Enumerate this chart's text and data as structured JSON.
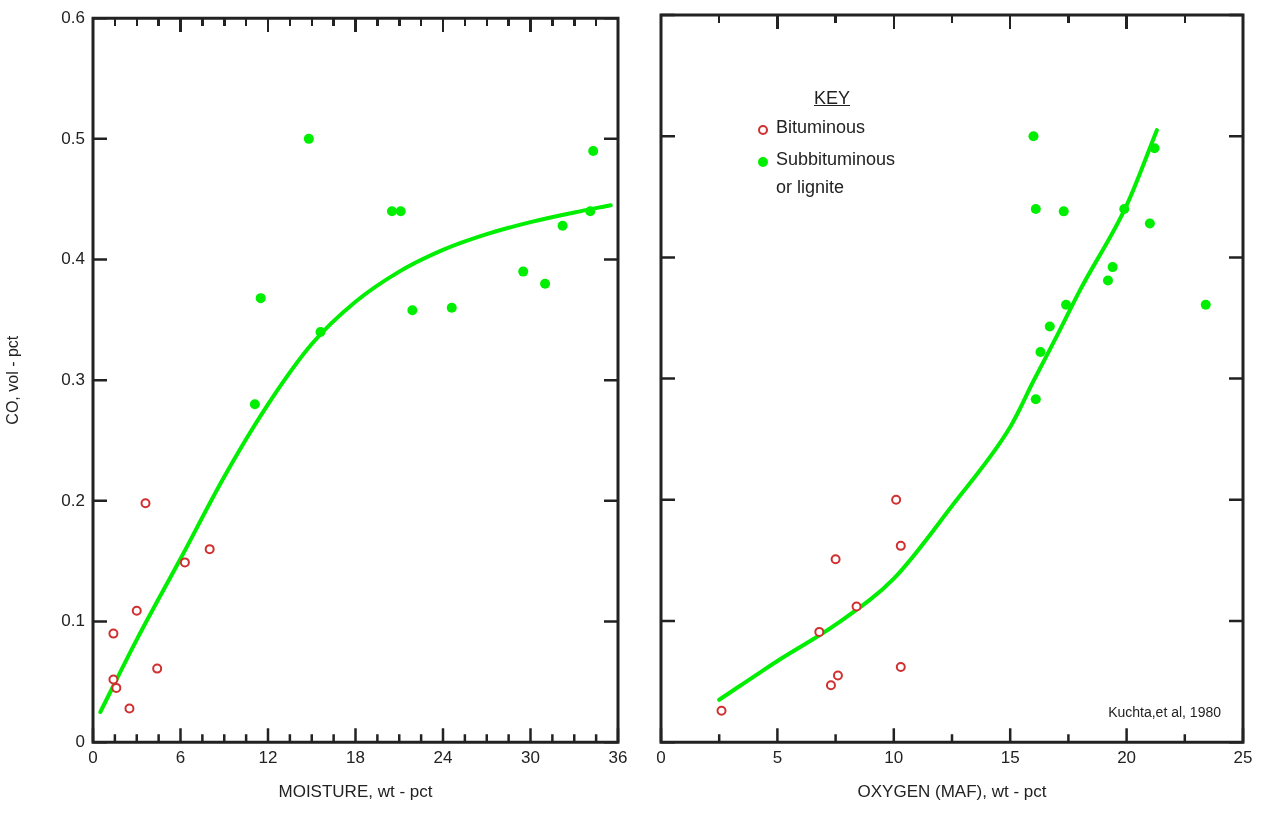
{
  "chart_data": [
    {
      "type": "scatter",
      "xlabel": "MOISTURE, wt - pct",
      "ylabel": "CO, vol - pct",
      "xlim": [
        0,
        36
      ],
      "ylim": [
        0,
        0.6
      ],
      "xticks": [
        0,
        {
          "value": 1.5,
          "label": null
        },
        {
          "value": 3,
          "label": null
        },
        {
          "value": 4.5,
          "label": null
        },
        6,
        {
          "value": 7.5,
          "label": null
        },
        {
          "value": 9,
          "label": null
        },
        {
          "value": 10.5,
          "label": null
        },
        12,
        {
          "value": 13.5,
          "label": null
        },
        {
          "value": 15,
          "label": null
        },
        {
          "value": 16.5,
          "label": null
        },
        18,
        {
          "value": 19.5,
          "label": null
        },
        {
          "value": 21,
          "label": null
        },
        {
          "value": 22.5,
          "label": null
        },
        24,
        {
          "value": 25.5,
          "label": null
        },
        {
          "value": 27,
          "label": null
        },
        {
          "value": 28.5,
          "label": null
        },
        30,
        {
          "value": 31.5,
          "label": null
        },
        {
          "value": 33,
          "label": null
        },
        {
          "value": 34.5,
          "label": null
        },
        36
      ],
      "yticks": [
        0,
        0.1,
        0.2,
        0.3,
        0.4,
        0.5,
        0.6
      ],
      "legend": false,
      "series": [
        {
          "type": "scatter",
          "marker": "circle",
          "color": "#d03030",
          "x": [
            1.4,
            1.4,
            1.6,
            2.5,
            3.0,
            3.6,
            4.4,
            6.3,
            8.0
          ],
          "values": [
            0.052,
            0.09,
            0.045,
            0.028,
            0.109,
            0.198,
            0.061,
            0.149,
            0.16
          ]
        },
        {
          "type": "scatter",
          "marker": "circle",
          "color": "#00ee00",
          "x": [
            11.1,
            11.5,
            14.8,
            15.6,
            20.5,
            21.1,
            21.9,
            24.6,
            29.5,
            31.0,
            32.2,
            34.1,
            34.3
          ],
          "values": [
            0.28,
            0.368,
            0.5,
            0.34,
            0.44,
            0.44,
            0.358,
            0.36,
            0.39,
            0.38,
            0.428,
            0.44,
            0.49
          ]
        },
        {
          "type": "line",
          "color": "#00ee00",
          "x": [
            0.5,
            3,
            6,
            9,
            12,
            15,
            18,
            21,
            24,
            27,
            30,
            33,
            35.5
          ],
          "values": [
            0.025,
            0.085,
            0.152,
            0.22,
            0.28,
            0.33,
            0.365,
            0.39,
            0.408,
            0.421,
            0.431,
            0.439,
            0.445
          ]
        }
      ]
    },
    {
      "type": "scatter",
      "xlabel": "OXYGEN (MAF), wt - pct",
      "legend_title": "KEY",
      "xlim": [
        0,
        25
      ],
      "ylim": [
        0,
        0.6
      ],
      "xticks": [
        0,
        {
          "value": 2.5,
          "label": null
        },
        5,
        {
          "value": 7.5,
          "label": null
        },
        10,
        {
          "value": 12.5,
          "label": null
        },
        15,
        {
          "value": 17.5,
          "label": null
        },
        20,
        {
          "value": 22.5,
          "label": null
        },
        25
      ],
      "yticks": [
        0,
        0.1,
        0.2,
        0.3,
        0.4,
        0.5,
        0.6
      ],
      "tick_labels": "x",
      "legend": "top left",
      "annotations": [
        "Kuchta,et al, 1980"
      ],
      "series": [
        {
          "type": "scatter",
          "marker": "circle",
          "name": "Bituminous",
          "color": "#d03030",
          "x": [
            2.6,
            6.8,
            7.3,
            7.6,
            7.5,
            8.4,
            10.1,
            10.3,
            10.3
          ],
          "values": [
            0.026,
            0.091,
            0.047,
            0.055,
            0.151,
            0.112,
            0.2,
            0.162,
            0.062
          ]
        },
        {
          "type": "scatter",
          "marker": "circle",
          "name": "Subbituminous or lignite",
          "color": "#00ee00",
          "x": [
            16.0,
            21.2,
            16.1,
            17.3,
            19.9,
            21.0,
            19.4,
            19.2,
            23.4,
            17.4,
            16.7,
            16.3,
            16.1
          ],
          "values": [
            0.5,
            0.49,
            0.44,
            0.438,
            0.44,
            0.428,
            0.392,
            0.381,
            0.361,
            0.361,
            0.343,
            0.322,
            0.283
          ]
        },
        {
          "type": "line",
          "color": "#00ee00",
          "x": [
            2.5,
            5,
            7.5,
            10,
            12.5,
            15,
            16,
            17,
            18,
            20,
            21.3
          ],
          "values": [
            0.035,
            0.067,
            0.097,
            0.135,
            0.195,
            0.26,
            0.298,
            0.335,
            0.373,
            0.443,
            0.505
          ]
        }
      ]
    }
  ]
}
